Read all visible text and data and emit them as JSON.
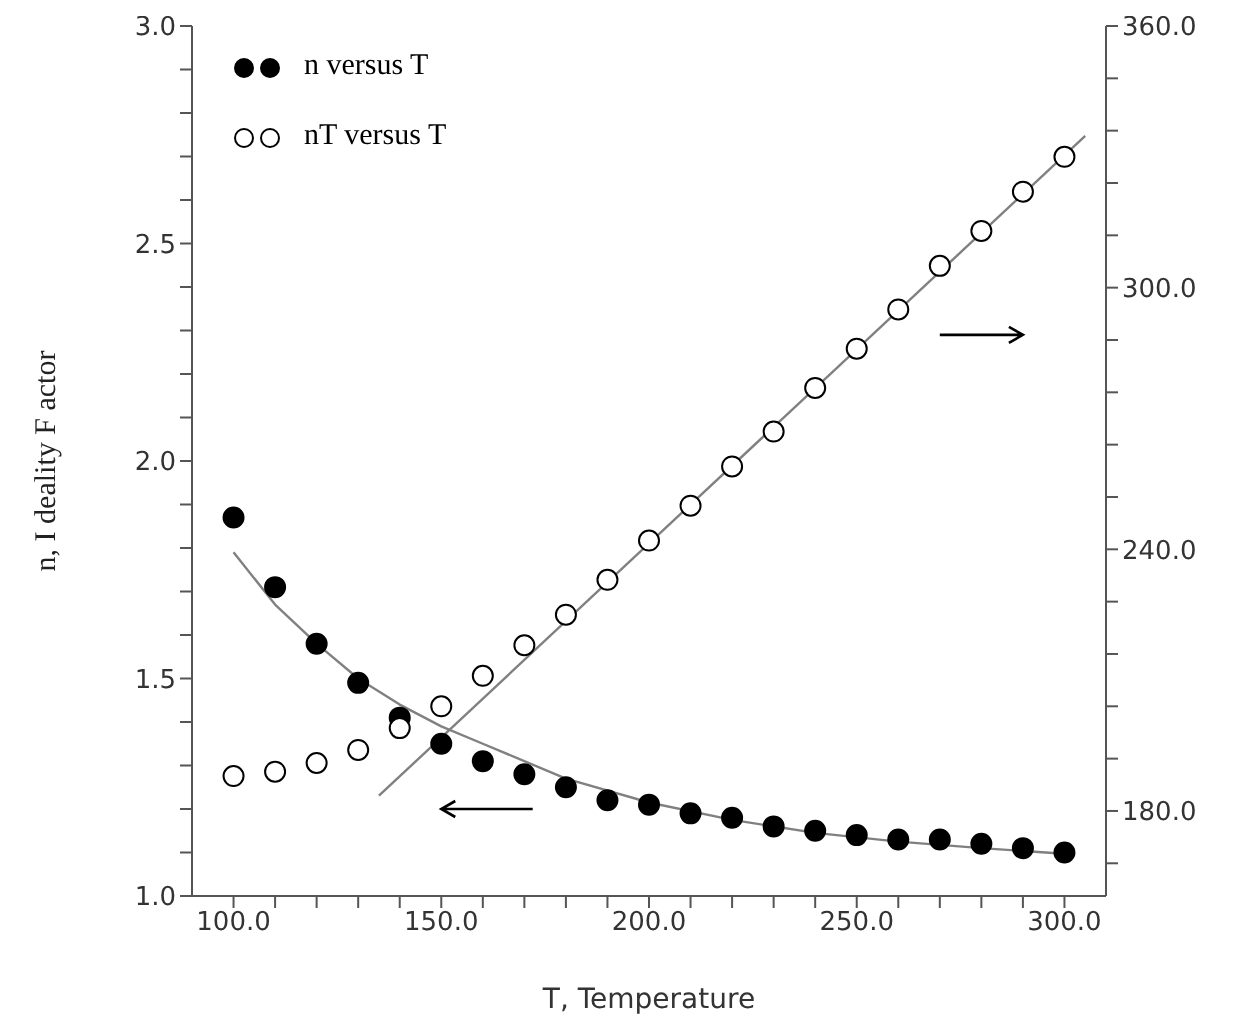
{
  "chart_data": {
    "type": "scatter",
    "xlabel": "T, Temperature",
    "ylabel": "n, I deality F actor",
    "legend": "top left",
    "marker": "circle",
    "grid": false,
    "xlim": [
      90,
      310
    ],
    "xticks": [
      {
        "value": 100,
        "label": "100.0"
      },
      {
        "value": 110,
        "label": null
      },
      {
        "value": 120,
        "label": null
      },
      {
        "value": 130,
        "label": null
      },
      {
        "value": 140,
        "label": null
      },
      {
        "value": 150,
        "label": "150.0"
      },
      {
        "value": 160,
        "label": null
      },
      {
        "value": 170,
        "label": null
      },
      {
        "value": 180,
        "label": null
      },
      {
        "value": 190,
        "label": null
      },
      {
        "value": 200,
        "label": "200.0"
      },
      {
        "value": 210,
        "label": null
      },
      {
        "value": 220,
        "label": null
      },
      {
        "value": 230,
        "label": null
      },
      {
        "value": 240,
        "label": null
      },
      {
        "value": 250,
        "label": "250.0"
      },
      {
        "value": 260,
        "label": null
      },
      {
        "value": 270,
        "label": null
      },
      {
        "value": 280,
        "label": null
      },
      {
        "value": 290,
        "label": null
      },
      {
        "value": 300,
        "label": "300.0"
      }
    ],
    "ylim": [
      1.0,
      3.0
    ],
    "yticks": [
      {
        "value": 1.0,
        "label": "1.0"
      },
      {
        "value": 1.1,
        "label": null
      },
      {
        "value": 1.2,
        "label": null
      },
      {
        "value": 1.3,
        "label": null
      },
      {
        "value": 1.4,
        "label": null
      },
      {
        "value": 1.5,
        "label": "1.5"
      },
      {
        "value": 1.6,
        "label": null
      },
      {
        "value": 1.7,
        "label": null
      },
      {
        "value": 1.8,
        "label": null
      },
      {
        "value": 1.9,
        "label": null
      },
      {
        "value": 2.0,
        "label": "2.0"
      },
      {
        "value": 2.1,
        "label": null
      },
      {
        "value": 2.2,
        "label": null
      },
      {
        "value": 2.3,
        "label": null
      },
      {
        "value": 2.4,
        "label": null
      },
      {
        "value": 2.5,
        "label": "2.5"
      },
      {
        "value": 2.6,
        "label": null
      },
      {
        "value": 2.7,
        "label": null
      },
      {
        "value": 2.8,
        "label": null
      },
      {
        "value": 2.9,
        "label": null
      },
      {
        "value": 3.0,
        "label": "3.0"
      }
    ],
    "y2lim": [
      160.5,
      360
    ],
    "y2ticks": [
      {
        "value": 168,
        "label": null
      },
      {
        "value": 180,
        "label": "180.0"
      },
      {
        "value": 192,
        "label": null
      },
      {
        "value": 204,
        "label": null
      },
      {
        "value": 216,
        "label": null
      },
      {
        "value": 228,
        "label": null
      },
      {
        "value": 240,
        "label": "240.0"
      },
      {
        "value": 252,
        "label": null
      },
      {
        "value": 264,
        "label": null
      },
      {
        "value": 276,
        "label": null
      },
      {
        "value": 288,
        "label": null
      },
      {
        "value": 300,
        "label": "300.0"
      },
      {
        "value": 312,
        "label": null
      },
      {
        "value": 324,
        "label": null
      },
      {
        "value": 336,
        "label": null
      },
      {
        "value": 348,
        "label": null
      },
      {
        "value": 360,
        "label": "360.0"
      }
    ],
    "series": [
      {
        "name": "n versus T",
        "color": "#000000",
        "x": [
          100,
          110,
          120,
          130,
          140,
          150,
          160,
          170,
          180,
          190,
          200,
          210,
          220,
          230,
          240,
          250,
          260,
          270,
          280,
          290,
          300
        ],
        "values": [
          1.87,
          1.71,
          1.58,
          1.49,
          1.41,
          1.35,
          1.31,
          1.28,
          1.25,
          1.22,
          1.21,
          1.19,
          1.18,
          1.16,
          1.15,
          1.14,
          1.13,
          1.13,
          1.12,
          1.11,
          1.1
        ]
      },
      {
        "name": "nT versus T",
        "axis": "y2",
        "color": "#000000",
        "x": [
          100,
          110,
          120,
          130,
          140,
          150,
          160,
          170,
          180,
          190,
          200,
          210,
          220,
          230,
          240,
          250,
          260,
          270,
          280,
          290,
          300
        ],
        "values": [
          188,
          189,
          191,
          194,
          199,
          204,
          211,
          218,
          225,
          233,
          242,
          250,
          259,
          267,
          277,
          286,
          295,
          305,
          313,
          322,
          330
        ]
      },
      {
        "type": "line",
        "color": "#808080",
        "marker": "none",
        "x": [
          100,
          110,
          120,
          130,
          140,
          150,
          160,
          180,
          200,
          220,
          240,
          260,
          280,
          300,
          302
        ],
        "values": [
          1.79,
          1.67,
          1.58,
          1.5,
          1.44,
          1.39,
          1.35,
          1.27,
          1.215,
          1.175,
          1.145,
          1.125,
          1.11,
          1.097,
          1.095
        ]
      },
      {
        "type": "line",
        "axis": "y2",
        "color": "#808080",
        "marker": "none",
        "x": [
          135,
          305
        ],
        "values": [
          183.5,
          334.8
        ]
      }
    ]
  }
}
